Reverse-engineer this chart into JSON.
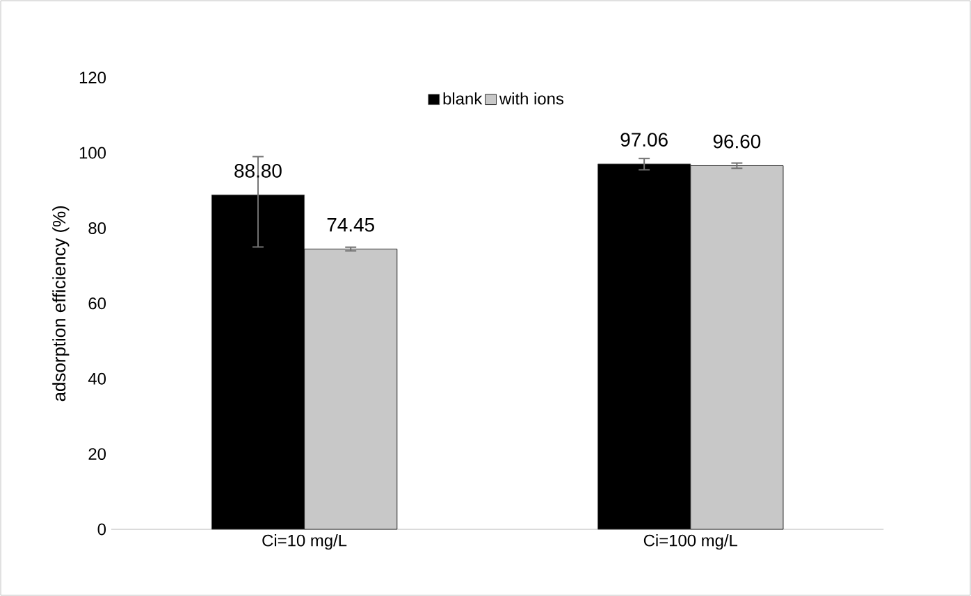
{
  "chart_data": {
    "type": "bar",
    "ylabel": "adsorption efficiency (%)",
    "categories": [
      "Ci=10 mg/L",
      "Ci=100 mg/L"
    ],
    "series": [
      {
        "name": "blank",
        "color": "#000000",
        "values": [
          88.8,
          97.06
        ],
        "errors": [
          [
            75,
            99
          ],
          [
            95.5,
            98.5
          ]
        ],
        "value_labels": [
          "88.80",
          "97.06"
        ]
      },
      {
        "name": "with ions",
        "color": "#c8c8c8",
        "values": [
          74.45,
          96.6
        ],
        "errors": [
          0.5,
          0.7
        ],
        "value_labels": [
          "74.45",
          "96.60"
        ]
      }
    ],
    "ylim": [
      0,
      120
    ],
    "yticks": [
      0,
      20,
      40,
      60,
      80,
      100,
      120
    ],
    "grid": false,
    "legend": "top"
  }
}
